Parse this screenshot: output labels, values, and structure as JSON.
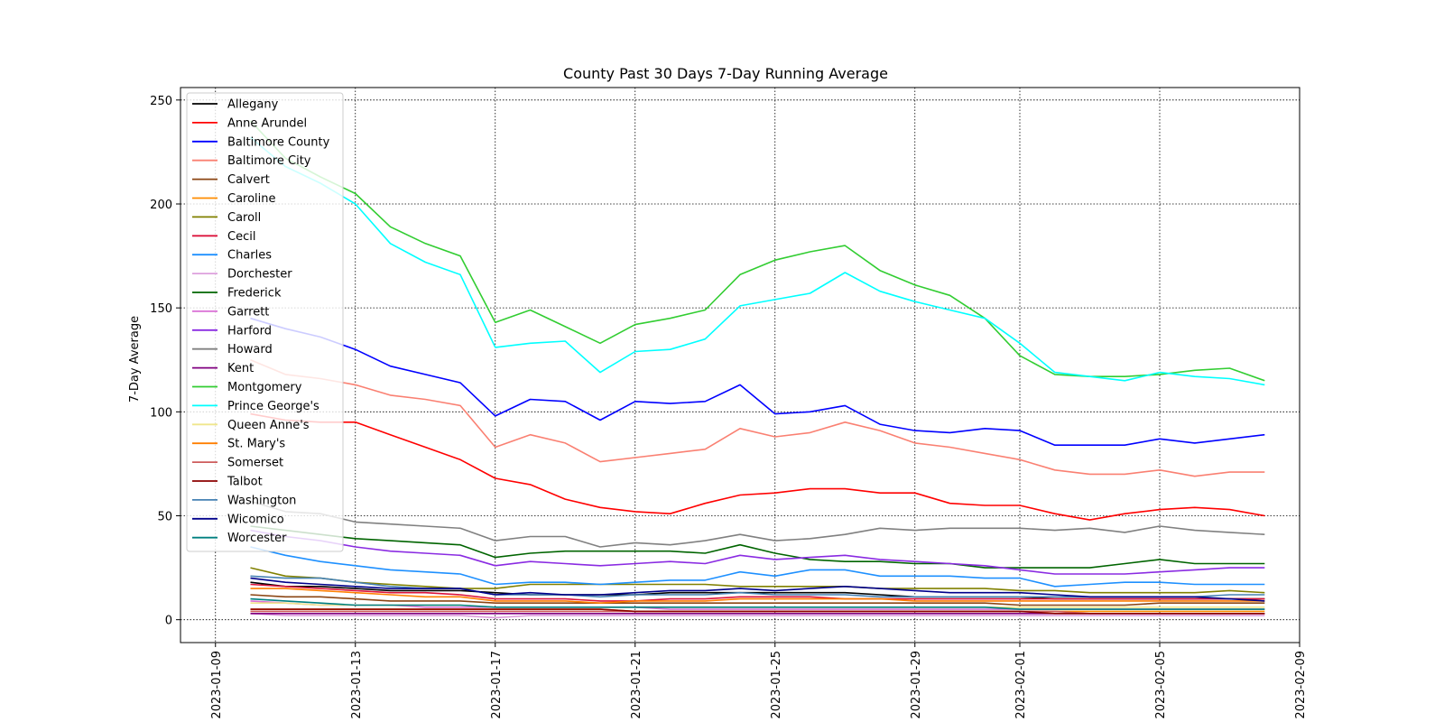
{
  "chart_data": {
    "type": "line",
    "title": "County Past 30 Days 7-Day Running Average",
    "xlabel": "",
    "ylabel": "7-Day Average",
    "xlim": [
      "2023-01-08",
      "2023-02-09"
    ],
    "ylim": [
      -11,
      256
    ],
    "yticks": [
      0,
      50,
      100,
      150,
      200,
      250
    ],
    "xticks": [
      "2023-01-09",
      "2023-01-13",
      "2023-01-17",
      "2023-01-21",
      "2023-01-25",
      "2023-01-29",
      "2023-02-01",
      "2023-02-05",
      "2023-02-09"
    ],
    "grid": true,
    "legend_position": "upper-left",
    "x": [
      "2023-01-10",
      "2023-01-11",
      "2023-01-12",
      "2023-01-13",
      "2023-01-14",
      "2023-01-15",
      "2023-01-16",
      "2023-01-17",
      "2023-01-18",
      "2023-01-19",
      "2023-01-20",
      "2023-01-21",
      "2023-01-22",
      "2023-01-23",
      "2023-01-24",
      "2023-01-25",
      "2023-01-26",
      "2023-01-27",
      "2023-01-28",
      "2023-01-29",
      "2023-01-30",
      "2023-01-31",
      "2023-02-01",
      "2023-02-02",
      "2023-02-03",
      "2023-02-04",
      "2023-02-05",
      "2023-02-06",
      "2023-02-07",
      "2023-02-08"
    ],
    "series": [
      {
        "name": "Allegany",
        "color": "#000000",
        "values": [
          18,
          16,
          16,
          15,
          14,
          14,
          14,
          13,
          12,
          12,
          12,
          12,
          13,
          13,
          13,
          13,
          13,
          13,
          12,
          11,
          11,
          11,
          11,
          10,
          10,
          10,
          10,
          10,
          10,
          10
        ]
      },
      {
        "name": "Anne Arundel",
        "color": "#ff0000",
        "values": [
          99,
          96,
          95,
          95,
          89,
          83,
          77,
          68,
          65,
          58,
          54,
          52,
          51,
          56,
          60,
          61,
          63,
          63,
          61,
          61,
          56,
          55,
          55,
          51,
          48,
          51,
          53,
          54,
          53,
          50
        ]
      },
      {
        "name": "Baltimore County",
        "color": "#0000ff",
        "values": [
          145,
          140,
          136,
          130,
          122,
          118,
          114,
          98,
          106,
          105,
          96,
          105,
          104,
          105,
          113,
          99,
          100,
          103,
          94,
          91,
          90,
          92,
          91,
          84,
          84,
          84,
          87,
          85,
          87,
          89
        ]
      },
      {
        "name": "Baltimore City",
        "color": "#fa8072",
        "values": [
          125,
          118,
          116,
          113,
          108,
          106,
          103,
          83,
          89,
          85,
          76,
          78,
          80,
          82,
          92,
          88,
          90,
          95,
          91,
          85,
          83,
          80,
          77,
          72,
          70,
          70,
          72,
          69,
          71,
          71
        ]
      },
      {
        "name": "Calvert",
        "color": "#8b4513",
        "values": [
          12,
          11,
          11,
          10,
          9,
          9,
          9,
          8,
          8,
          8,
          8,
          8,
          8,
          8,
          8,
          8,
          8,
          8,
          8,
          8,
          8,
          8,
          7,
          7,
          7,
          7,
          8,
          8,
          8,
          8
        ]
      },
      {
        "name": "Caroline",
        "color": "#ff8c00",
        "values": [
          5,
          5,
          5,
          5,
          5,
          5,
          5,
          5,
          5,
          5,
          5,
          4,
          4,
          4,
          4,
          4,
          4,
          4,
          4,
          4,
          4,
          4,
          4,
          4,
          4,
          4,
          4,
          4,
          4,
          4
        ]
      },
      {
        "name": "Caroll",
        "color": "#808000",
        "values": [
          25,
          21,
          20,
          18,
          17,
          16,
          15,
          15,
          17,
          17,
          17,
          17,
          17,
          17,
          16,
          16,
          16,
          16,
          15,
          15,
          15,
          15,
          14,
          14,
          13,
          13,
          13,
          13,
          14,
          13
        ]
      },
      {
        "name": "Cecil",
        "color": "#dc143c",
        "values": [
          17,
          16,
          15,
          14,
          13,
          13,
          12,
          10,
          10,
          10,
          9,
          9,
          10,
          10,
          11,
          11,
          11,
          10,
          10,
          10,
          10,
          10,
          10,
          10,
          10,
          10,
          10,
          10,
          10,
          10
        ]
      },
      {
        "name": "Charles",
        "color": "#1e90ff",
        "values": [
          35,
          31,
          28,
          26,
          24,
          23,
          22,
          17,
          18,
          18,
          17,
          18,
          19,
          19,
          23,
          21,
          24,
          24,
          21,
          21,
          21,
          20,
          20,
          16,
          17,
          18,
          18,
          17,
          17,
          17
        ]
      },
      {
        "name": "Dorchester",
        "color": "#dda0dd",
        "values": [
          3,
          2,
          2,
          2,
          2,
          2,
          2,
          1,
          2,
          2,
          2,
          2,
          2,
          2,
          2,
          2,
          2,
          2,
          2,
          2,
          2,
          2,
          2,
          2,
          2,
          2,
          2,
          2,
          2,
          2
        ]
      },
      {
        "name": "Frederick",
        "color": "#006400",
        "values": [
          45,
          43,
          41,
          39,
          38,
          37,
          36,
          30,
          32,
          33,
          33,
          33,
          33,
          32,
          36,
          32,
          29,
          28,
          28,
          27,
          27,
          25,
          25,
          25,
          25,
          27,
          29,
          27,
          27,
          27
        ]
      },
      {
        "name": "Garrett",
        "color": "#da70d6",
        "values": [
          9,
          8,
          7,
          7,
          7,
          6,
          6,
          6,
          6,
          6,
          6,
          6,
          5,
          5,
          5,
          5,
          5,
          5,
          5,
          5,
          5,
          5,
          5,
          5,
          5,
          5,
          5,
          5,
          5,
          5
        ]
      },
      {
        "name": "Harford",
        "color": "#8a2be2",
        "values": [
          43,
          40,
          38,
          35,
          33,
          32,
          31,
          26,
          28,
          27,
          26,
          27,
          28,
          27,
          31,
          29,
          30,
          31,
          29,
          28,
          27,
          26,
          24,
          22,
          22,
          22,
          23,
          24,
          25,
          25
        ]
      },
      {
        "name": "Howard",
        "color": "#808080",
        "values": [
          57,
          52,
          51,
          47,
          46,
          45,
          44,
          38,
          40,
          40,
          35,
          37,
          36,
          38,
          41,
          38,
          39,
          41,
          44,
          43,
          44,
          44,
          44,
          43,
          44,
          42,
          45,
          43,
          42,
          41
        ]
      },
      {
        "name": "Kent",
        "color": "#800080",
        "values": [
          3,
          3,
          3,
          3,
          3,
          3,
          3,
          3,
          3,
          3,
          3,
          3,
          3,
          3,
          3,
          3,
          3,
          3,
          3,
          3,
          3,
          3,
          3,
          3,
          3,
          3,
          3,
          3,
          3,
          3
        ]
      },
      {
        "name": "Montgomery",
        "color": "#32cd32",
        "values": [
          240,
          222,
          213,
          205,
          189,
          181,
          175,
          143,
          149,
          141,
          133,
          142,
          145,
          149,
          166,
          173,
          177,
          180,
          168,
          161,
          156,
          145,
          127,
          118,
          117,
          117,
          118,
          120,
          121,
          115
        ]
      },
      {
        "name": "Prince George's",
        "color": "#00ffff",
        "values": [
          232,
          218,
          210,
          200,
          181,
          172,
          166,
          131,
          133,
          134,
          119,
          129,
          130,
          135,
          151,
          154,
          157,
          167,
          158,
          153,
          149,
          145,
          133,
          119,
          117,
          115,
          119,
          117,
          116,
          113
        ]
      },
      {
        "name": "Queen Anne's",
        "color": "#f0e68c",
        "values": [
          8,
          8,
          7,
          7,
          7,
          7,
          7,
          6,
          6,
          6,
          6,
          6,
          6,
          6,
          6,
          6,
          6,
          6,
          6,
          6,
          6,
          6,
          6,
          6,
          6,
          6,
          6,
          6,
          6,
          6
        ]
      },
      {
        "name": "St. Mary's",
        "color": "#ff7f00",
        "values": [
          15,
          15,
          14,
          13,
          12,
          11,
          11,
          9,
          9,
          9,
          8,
          9,
          9,
          9,
          10,
          10,
          10,
          10,
          10,
          9,
          9,
          9,
          9,
          9,
          9,
          9,
          9,
          9,
          9,
          9
        ]
      },
      {
        "name": "Somerset",
        "color": "#cd5c5c",
        "values": [
          4,
          4,
          4,
          4,
          4,
          4,
          4,
          4,
          4,
          4,
          4,
          4,
          4,
          4,
          4,
          4,
          4,
          4,
          4,
          4,
          4,
          4,
          4,
          4,
          3,
          3,
          3,
          3,
          3,
          3
        ]
      },
      {
        "name": "Talbot",
        "color": "#8b0000",
        "values": [
          5,
          5,
          5,
          5,
          5,
          5,
          5,
          5,
          5,
          5,
          5,
          4,
          4,
          4,
          4,
          4,
          4,
          4,
          4,
          4,
          4,
          4,
          4,
          3,
          3,
          3,
          3,
          3,
          3,
          3
        ]
      },
      {
        "name": "Washington",
        "color": "#4682b4",
        "values": [
          21,
          20,
          20,
          18,
          16,
          15,
          15,
          12,
          12,
          12,
          11,
          12,
          12,
          12,
          13,
          12,
          12,
          12,
          11,
          11,
          11,
          11,
          11,
          11,
          11,
          11,
          11,
          11,
          12,
          12
        ]
      },
      {
        "name": "Wicomico",
        "color": "#00008b",
        "values": [
          20,
          18,
          17,
          16,
          15,
          15,
          15,
          12,
          13,
          12,
          12,
          13,
          14,
          14,
          15,
          14,
          15,
          16,
          15,
          14,
          13,
          13,
          13,
          12,
          11,
          11,
          11,
          11,
          10,
          9
        ]
      },
      {
        "name": "Worcester",
        "color": "#008080",
        "values": [
          10,
          9,
          8,
          7,
          7,
          7,
          7,
          6,
          6,
          6,
          6,
          6,
          6,
          6,
          6,
          6,
          6,
          6,
          6,
          6,
          6,
          6,
          5,
          5,
          5,
          5,
          5,
          5,
          5,
          5
        ]
      }
    ]
  }
}
